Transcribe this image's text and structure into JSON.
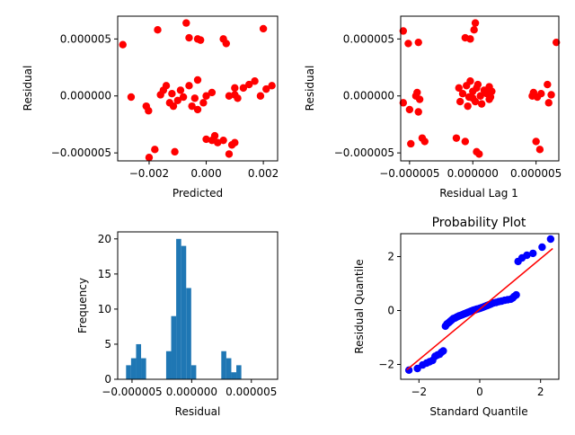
{
  "chart_data": [
    {
      "id": "residual-vs-predicted",
      "type": "scatter",
      "xlabel": "Predicted",
      "ylabel": "Residual",
      "xlim": [
        -0.0031,
        0.0025
      ],
      "ylim": [
        -5.7e-06,
        7e-06
      ],
      "xticks": [
        -0.002,
        0.0,
        0.002
      ],
      "xtick_labels": [
        "−0.002",
        "0.000",
        "0.002"
      ],
      "yticks": [
        -5e-06,
        0.0,
        5e-06
      ],
      "ytick_labels": [
        "−0.000005",
        "0.000000",
        "0.000005"
      ],
      "marker_color": "#ff0000",
      "points": [
        [
          -0.00292,
          4.5e-06
        ],
        [
          -0.00263,
          -1e-07
        ],
        [
          -0.0021,
          -9e-07
        ],
        [
          -0.00202,
          -1.3e-06
        ],
        [
          -0.002,
          -5.4e-06
        ],
        [
          -0.0018,
          -4.7e-06
        ],
        [
          -0.0017,
          5.8e-06
        ],
        [
          -0.0016,
          1e-07
        ],
        [
          -0.0015,
          5e-07
        ],
        [
          -0.0014,
          9e-07
        ],
        [
          -0.00128,
          -6e-07
        ],
        [
          -0.00115,
          -9e-07
        ],
        [
          -0.0011,
          -4.9e-06
        ],
        [
          -0.001,
          -4e-07
        ],
        [
          -0.0009,
          5e-07
        ],
        [
          -0.0008,
          -1e-07
        ],
        [
          -0.0007,
          6.4e-06
        ],
        [
          -0.0006,
          5.1e-06
        ],
        [
          -0.0006,
          9e-07
        ],
        [
          -0.0005,
          -9e-07
        ],
        [
          -0.0004,
          -2e-07
        ],
        [
          -0.0003,
          5e-06
        ],
        [
          -0.0002,
          4.9e-06
        ],
        [
          -0.0003,
          1.4e-06
        ],
        [
          -0.0001,
          -6e-07
        ],
        [
          0.0,
          0.0
        ],
        [
          -0.0003,
          -1.2e-06
        ],
        [
          0.0,
          -3.8e-06
        ],
        [
          0.0002,
          -3.9e-06
        ],
        [
          0.0003,
          -3.5e-06
        ],
        [
          0.0004,
          -4.1e-06
        ],
        [
          0.0002,
          3e-07
        ],
        [
          0.0006,
          -3.9e-06
        ],
        [
          0.0006,
          5e-06
        ],
        [
          0.0007,
          4.6e-06
        ],
        [
          0.0008,
          -5.1e-06
        ],
        [
          0.0009,
          -4.3e-06
        ],
        [
          0.001,
          -4.1e-06
        ],
        [
          0.0008,
          0.0
        ],
        [
          0.001,
          7e-07
        ],
        [
          0.0011,
          -2e-07
        ],
        [
          0.0013,
          7e-07
        ],
        [
          0.0015,
          1e-06
        ],
        [
          0.0017,
          1.3e-06
        ],
        [
          0.0019,
          0.0
        ],
        [
          0.002,
          5.9e-06
        ],
        [
          0.0021,
          6e-07
        ],
        [
          0.0023,
          9e-07
        ],
        [
          0.001,
          1e-07
        ],
        [
          -0.0012,
          2e-07
        ]
      ]
    },
    {
      "id": "residual-lag-plot",
      "type": "scatter",
      "xlabel": "Residual Lag 1",
      "ylabel": "Residual",
      "xlim": [
        -5.7e-06,
        6.8e-06
      ],
      "ylim": [
        -5.7e-06,
        7e-06
      ],
      "xticks": [
        -5e-06,
        0.0,
        5e-06
      ],
      "xtick_labels": [
        "−0.000005",
        "0.000000",
        "0.000005"
      ],
      "yticks": [
        -5e-06,
        0.0,
        5e-06
      ],
      "ytick_labels": [
        "−0.000005",
        "0.000000",
        "0.000005"
      ],
      "marker_color": "#ff0000",
      "points": [
        [
          -5.5e-06,
          5.7e-06
        ],
        [
          -5.5e-06,
          -6e-07
        ],
        [
          -5.1e-06,
          4.6e-06
        ],
        [
          -5e-06,
          -1.2e-06
        ],
        [
          -4.9e-06,
          -4.2e-06
        ],
        [
          -4.5e-06,
          0.0
        ],
        [
          -4.4e-06,
          3e-07
        ],
        [
          -4.3e-06,
          4.7e-06
        ],
        [
          -4.3e-06,
          -1.4e-06
        ],
        [
          -4.2e-06,
          -3e-07
        ],
        [
          -4e-06,
          -3.7e-06
        ],
        [
          -3.8e-06,
          -4e-06
        ],
        [
          -1.3e-06,
          -3.7e-06
        ],
        [
          -1.1e-06,
          7e-07
        ],
        [
          -1e-06,
          -5e-07
        ],
        [
          -8e-07,
          2e-07
        ],
        [
          -6e-07,
          5.1e-06
        ],
        [
          -6e-07,
          -4e-06
        ],
        [
          -5e-07,
          9e-07
        ],
        [
          -4e-07,
          -9e-07
        ],
        [
          -3e-07,
          -1e-07
        ],
        [
          -2e-07,
          5e-06
        ],
        [
          -2e-07,
          1.3e-06
        ],
        [
          0.0,
          -2e-07
        ],
        [
          0.0,
          4e-07
        ],
        [
          1e-07,
          5.8e-06
        ],
        [
          2e-07,
          6.4e-06
        ],
        [
          2e-07,
          -5e-07
        ],
        [
          3e-07,
          -4.9e-06
        ],
        [
          3e-07,
          7e-07
        ],
        [
          4e-07,
          1e-06
        ],
        [
          5e-07,
          -5.1e-06
        ],
        [
          6e-07,
          0.0
        ],
        [
          7e-07,
          -7e-07
        ],
        [
          9e-07,
          5e-07
        ],
        [
          1.1e-06,
          2e-07
        ],
        [
          1.3e-06,
          -3e-07
        ],
        [
          1.3e-06,
          8e-07
        ],
        [
          1.4e-06,
          -1e-07
        ],
        [
          1.5e-06,
          4e-07
        ],
        [
          4.7e-06,
          0.0
        ],
        [
          4.8e-06,
          3e-07
        ],
        [
          5e-06,
          -4e-06
        ],
        [
          5.1e-06,
          -1e-07
        ],
        [
          5.3e-06,
          -4.7e-06
        ],
        [
          5.4e-06,
          2e-07
        ],
        [
          5.9e-06,
          1e-06
        ],
        [
          6e-06,
          -6e-07
        ],
        [
          6.2e-06,
          1e-07
        ],
        [
          6.6e-06,
          4.7e-06
        ]
      ]
    },
    {
      "id": "residual-histogram",
      "type": "bar",
      "xlabel": "Residual",
      "ylabel": "Frequency",
      "bar_color": "#1f77b4",
      "xlim": [
        -6.2e-06,
        7.2e-06
      ],
      "ylim": [
        0,
        21
      ],
      "xticks": [
        -5e-06,
        0.0,
        5e-06
      ],
      "xtick_labels": [
        "−0.000005",
        "0.000000",
        "0.000005"
      ],
      "yticks": [
        0,
        5,
        10,
        15,
        20
      ],
      "ytick_labels": [
        "0",
        "5",
        "10",
        "15",
        "20"
      ],
      "bin_start": -5.5e-06,
      "bin_width": 4.2e-07,
      "counts": [
        2,
        3,
        5,
        3,
        0,
        0,
        0,
        0,
        4,
        9,
        20,
        19,
        13,
        2,
        0,
        0,
        0,
        0,
        0,
        4,
        3,
        1,
        2
      ]
    },
    {
      "id": "probability-plot",
      "type": "scatter",
      "title": "Probability Plot",
      "xlabel": "Standard Quantile",
      "ylabel": "Residual Quantile",
      "xlim": [
        -2.6,
        2.6
      ],
      "ylim": [
        -2.55,
        2.85
      ],
      "xticks": [
        -2,
        0,
        2
      ],
      "xtick_labels": [
        "−2",
        "0",
        "2"
      ],
      "yticks": [
        -2,
        0,
        2
      ],
      "ytick_labels": [
        "−2",
        "0",
        "2"
      ],
      "marker_color": "#0000ff",
      "fit_line": {
        "x": [
          -2.4,
          2.4
        ],
        "y": [
          -2.2,
          2.3
        ],
        "color": "#ff0000"
      },
      "points": [
        [
          -2.33,
          -2.21
        ],
        [
          -2.05,
          -2.15
        ],
        [
          -1.88,
          -2.02
        ],
        [
          -1.75,
          -1.95
        ],
        [
          -1.65,
          -1.9
        ],
        [
          -1.55,
          -1.85
        ],
        [
          -1.47,
          -1.7
        ],
        [
          -1.39,
          -1.65
        ],
        [
          -1.32,
          -1.62
        ],
        [
          -1.26,
          -1.55
        ],
        [
          -1.2,
          -1.5
        ],
        [
          -1.13,
          -0.58
        ],
        [
          -1.08,
          -0.5
        ],
        [
          -1.02,
          -0.45
        ],
        [
          -0.97,
          -0.4
        ],
        [
          -0.92,
          -0.35
        ],
        [
          -0.87,
          -0.3
        ],
        [
          -0.82,
          -0.28
        ],
        [
          -0.77,
          -0.25
        ],
        [
          -0.72,
          -0.22
        ],
        [
          -0.68,
          -0.2
        ],
        [
          -0.63,
          -0.18
        ],
        [
          -0.58,
          -0.16
        ],
        [
          -0.54,
          -0.14
        ],
        [
          -0.5,
          -0.12
        ],
        [
          -0.45,
          -0.1
        ],
        [
          -0.41,
          -0.08
        ],
        [
          -0.37,
          -0.06
        ],
        [
          -0.32,
          -0.04
        ],
        [
          -0.28,
          -0.02
        ],
        [
          -0.23,
          0.0
        ],
        [
          -0.19,
          0.02
        ],
        [
          -0.14,
          0.03
        ],
        [
          -0.1,
          0.05
        ],
        [
          -0.05,
          0.06
        ],
        [
          0.0,
          0.08
        ],
        [
          0.05,
          0.1
        ],
        [
          0.1,
          0.12
        ],
        [
          0.14,
          0.14
        ],
        [
          0.19,
          0.16
        ],
        [
          0.23,
          0.18
        ],
        [
          0.28,
          0.2
        ],
        [
          0.32,
          0.22
        ],
        [
          0.37,
          0.24
        ],
        [
          0.45,
          0.28
        ],
        [
          0.54,
          0.3
        ],
        [
          0.63,
          0.33
        ],
        [
          0.72,
          0.35
        ],
        [
          0.82,
          0.38
        ],
        [
          0.92,
          0.4
        ],
        [
          1.02,
          0.42
        ],
        [
          1.08,
          0.46
        ],
        [
          1.13,
          0.52
        ],
        [
          1.2,
          0.58
        ],
        [
          1.26,
          1.82
        ],
        [
          1.39,
          1.95
        ],
        [
          1.55,
          2.05
        ],
        [
          1.75,
          2.12
        ],
        [
          2.05,
          2.35
        ],
        [
          2.33,
          2.65
        ]
      ]
    }
  ]
}
